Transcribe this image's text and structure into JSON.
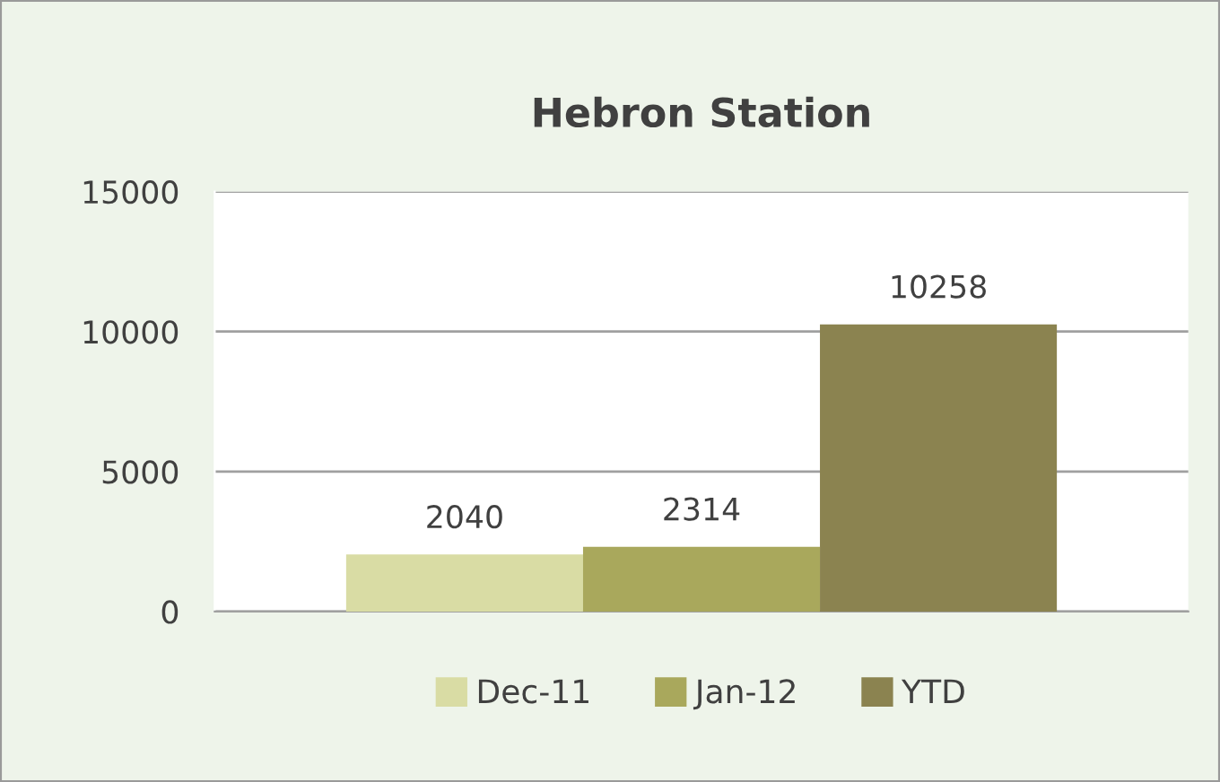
{
  "chart_data": {
    "type": "bar",
    "title": "Hebron Station",
    "categories": [
      null
    ],
    "series": [
      {
        "name": "Dec-11",
        "color": "#d9dca4",
        "values": [
          2040
        ]
      },
      {
        "name": "Jan-12",
        "color": "#a9a85c",
        "values": [
          2314
        ]
      },
      {
        "name": "YTD",
        "color": "#8b8350",
        "values": [
          10258
        ]
      }
    ],
    "ylim": [
      0,
      15000
    ],
    "yticks": [
      0,
      5000,
      10000,
      15000
    ],
    "grid": "y",
    "legend": "bottom",
    "data_labels": true,
    "tick_labels": "y"
  }
}
